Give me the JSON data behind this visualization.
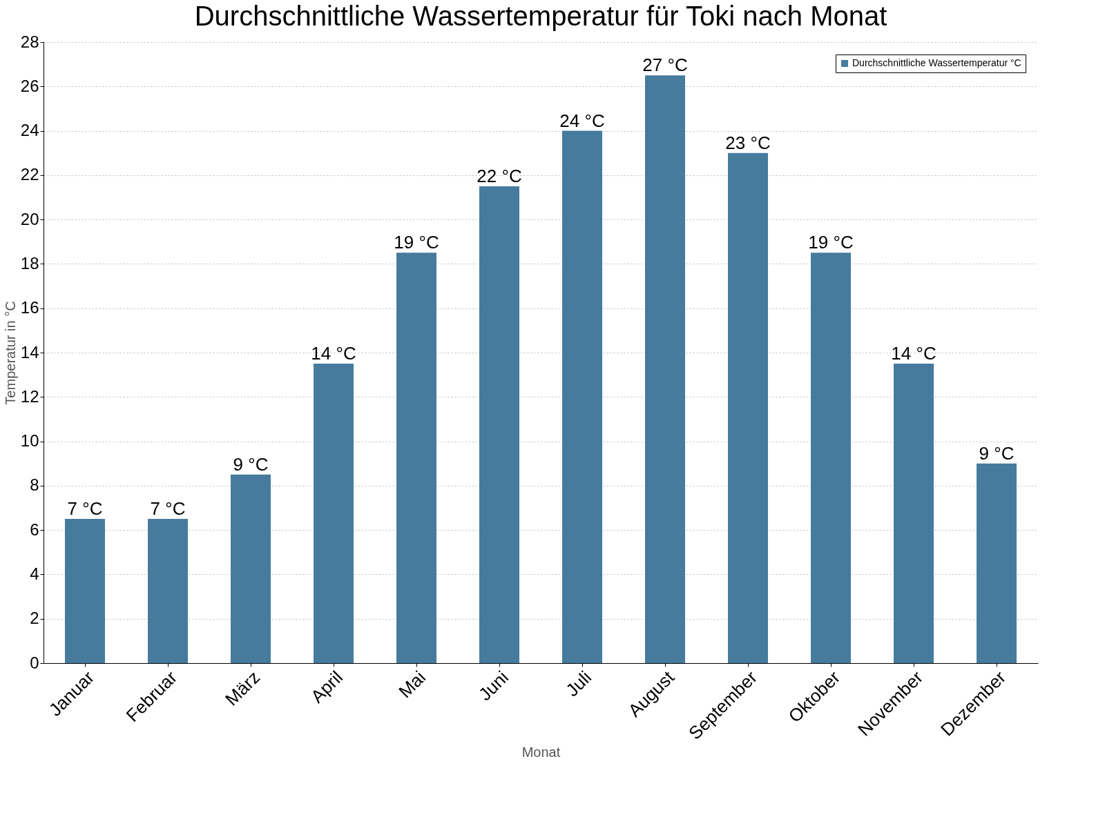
{
  "chart_data": {
    "type": "bar",
    "title": "Durchschnittliche Wassertemperatur für Toki nach Monat",
    "xlabel": "Monat",
    "ylabel": "Temperatur in °C",
    "categories": [
      "Januar",
      "Februar",
      "März",
      "April",
      "Mai",
      "Juni",
      "Juli",
      "August",
      "September",
      "Oktober",
      "November",
      "Dezember"
    ],
    "series": [
      {
        "name": "Durchschnittliche Wassertemperatur °C",
        "color": "#467b9e",
        "values": [
          6.5,
          6.5,
          8.5,
          13.5,
          18.5,
          21.5,
          24,
          26.5,
          23,
          18.5,
          13.5,
          9
        ],
        "value_labels": [
          "7 °C",
          "7 °C",
          "9 °C",
          "14 °C",
          "19 °C",
          "22 °C",
          "24 °C",
          "27 °C",
          "23 °C",
          "19 °C",
          "14 °C",
          "9 °C"
        ]
      }
    ],
    "ylim": [
      0,
      28
    ],
    "yticks": [
      0,
      2,
      4,
      6,
      8,
      10,
      12,
      14,
      16,
      18,
      20,
      22,
      24,
      26,
      28
    ],
    "grid": "y",
    "legend": "top right"
  }
}
